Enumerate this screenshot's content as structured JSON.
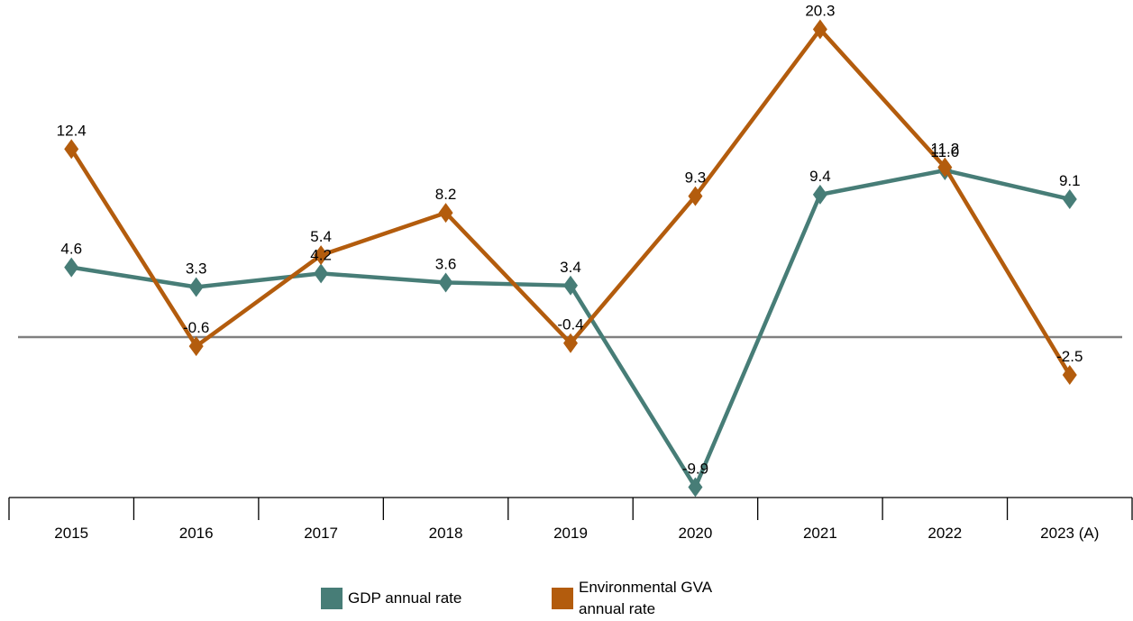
{
  "chart_data": {
    "type": "line",
    "categories": [
      "2015",
      "2016",
      "2017",
      "2018",
      "2019",
      "2020",
      "2021",
      "2022",
      "2023 (A)"
    ],
    "series": [
      {
        "name": "GDP annual rate",
        "color": "#477d77",
        "values": [
          4.6,
          3.3,
          4.2,
          3.6,
          3.4,
          -9.9,
          9.4,
          11.0,
          9.1
        ]
      },
      {
        "name": "Environmental GVA annual rate",
        "color": "#b35c0d",
        "values": [
          12.4,
          -0.6,
          5.4,
          8.2,
          -0.4,
          9.3,
          20.3,
          11.2,
          -2.5
        ]
      }
    ],
    "data_labels": {
      "GDP annual rate": [
        "4.6",
        "3.3",
        "4.2",
        "3.6",
        "3.4",
        "-9.9",
        "9.4",
        "11.0",
        "9.1"
      ],
      "Environmental GVA annual rate": [
        "12.4",
        "-0.6",
        "5.4",
        "8.2",
        "-0.4",
        "9.3",
        "20.3",
        "11.2",
        "-2.5"
      ]
    },
    "title": "",
    "xlabel": "",
    "ylabel": "",
    "ylim": [
      -10.5,
      21.5
    ],
    "zero_line": true,
    "marker": "diamond",
    "grid": false,
    "legend_position": "bottom-center",
    "axis_color": "#808080"
  }
}
